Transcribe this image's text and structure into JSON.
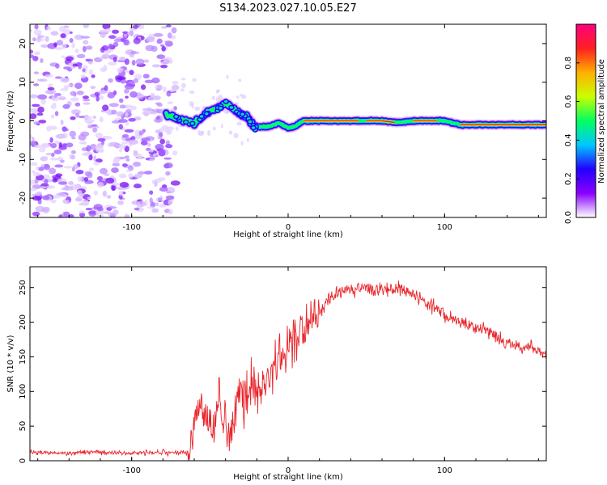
{
  "title": "S134.2023.027.10.05.E27",
  "chart_data": [
    {
      "type": "heatmap",
      "xlabel": "Height of straight line (km)",
      "ylabel": "Frequency (Hz)",
      "xlim": [
        -165,
        165
      ],
      "ylim": [
        -25,
        25
      ],
      "xticks": [
        -100,
        0,
        100
      ],
      "yticks": [
        -20,
        -10,
        0,
        10,
        20
      ],
      "colorbar": {
        "label": "Normalized spectral amplitude",
        "range": [
          0.0,
          1.0
        ],
        "ticks": [
          0.0,
          0.2,
          0.4,
          0.6,
          0.8
        ],
        "colormap": [
          "#ffffff",
          "#8a00ff",
          "#2200ff",
          "#00c8ff",
          "#00ff60",
          "#c8ff00",
          "#ffb000",
          "#ff2020",
          "#ff0080"
        ]
      },
      "frequency_track": {
        "x": [
          -78,
          -70,
          -60,
          -50,
          -44,
          -40,
          -36,
          -30,
          -26,
          -22,
          -18,
          -12,
          -6,
          0,
          4,
          10,
          20,
          40,
          60,
          70,
          80,
          100,
          110,
          130,
          165
        ],
        "y": [
          1.5,
          0.5,
          -0.5,
          2.5,
          3.5,
          4.5,
          3.5,
          1.5,
          1,
          -1.5,
          -1.5,
          -1.5,
          -0.5,
          -1.8,
          -1.5,
          0,
          0,
          0,
          0,
          -0.5,
          0,
          0,
          -1,
          -1,
          -1
        ]
      },
      "noise_region": {
        "x_range": [
          -165,
          -72
        ],
        "y_range": [
          -25,
          25
        ]
      }
    },
    {
      "type": "line",
      "xlabel": "Height of straight line (km)",
      "ylabel": "SNR (10 * v/v)",
      "xlim": [
        -165,
        165
      ],
      "ylim": [
        0,
        280
      ],
      "xticks": [
        -100,
        0,
        100
      ],
      "yticks": [
        0,
        50,
        100,
        150,
        200,
        250
      ],
      "series": [
        {
          "color": "#e8262b",
          "x": [
            -165,
            -140,
            -120,
            -100,
            -80,
            -64,
            -60,
            -56,
            -52,
            -48,
            -44,
            -40,
            -36,
            -32,
            -28,
            -24,
            -20,
            -16,
            -12,
            -8,
            -4,
            0,
            5,
            10,
            15,
            20,
            25,
            30,
            35,
            40,
            45,
            50,
            55,
            60,
            65,
            70,
            75,
            80,
            85,
            90,
            95,
            100,
            110,
            120,
            130,
            140,
            150,
            160,
            165
          ],
          "y": [
            12,
            11,
            12,
            11,
            12,
            12,
            55,
            80,
            60,
            45,
            90,
            50,
            40,
            110,
            85,
            120,
            100,
            115,
            125,
            140,
            150,
            160,
            175,
            190,
            205,
            215,
            230,
            240,
            245,
            250,
            248,
            250,
            246,
            248,
            245,
            250,
            245,
            240,
            235,
            225,
            220,
            210,
            200,
            192,
            185,
            170,
            163,
            158,
            150
          ]
        }
      ]
    }
  ]
}
